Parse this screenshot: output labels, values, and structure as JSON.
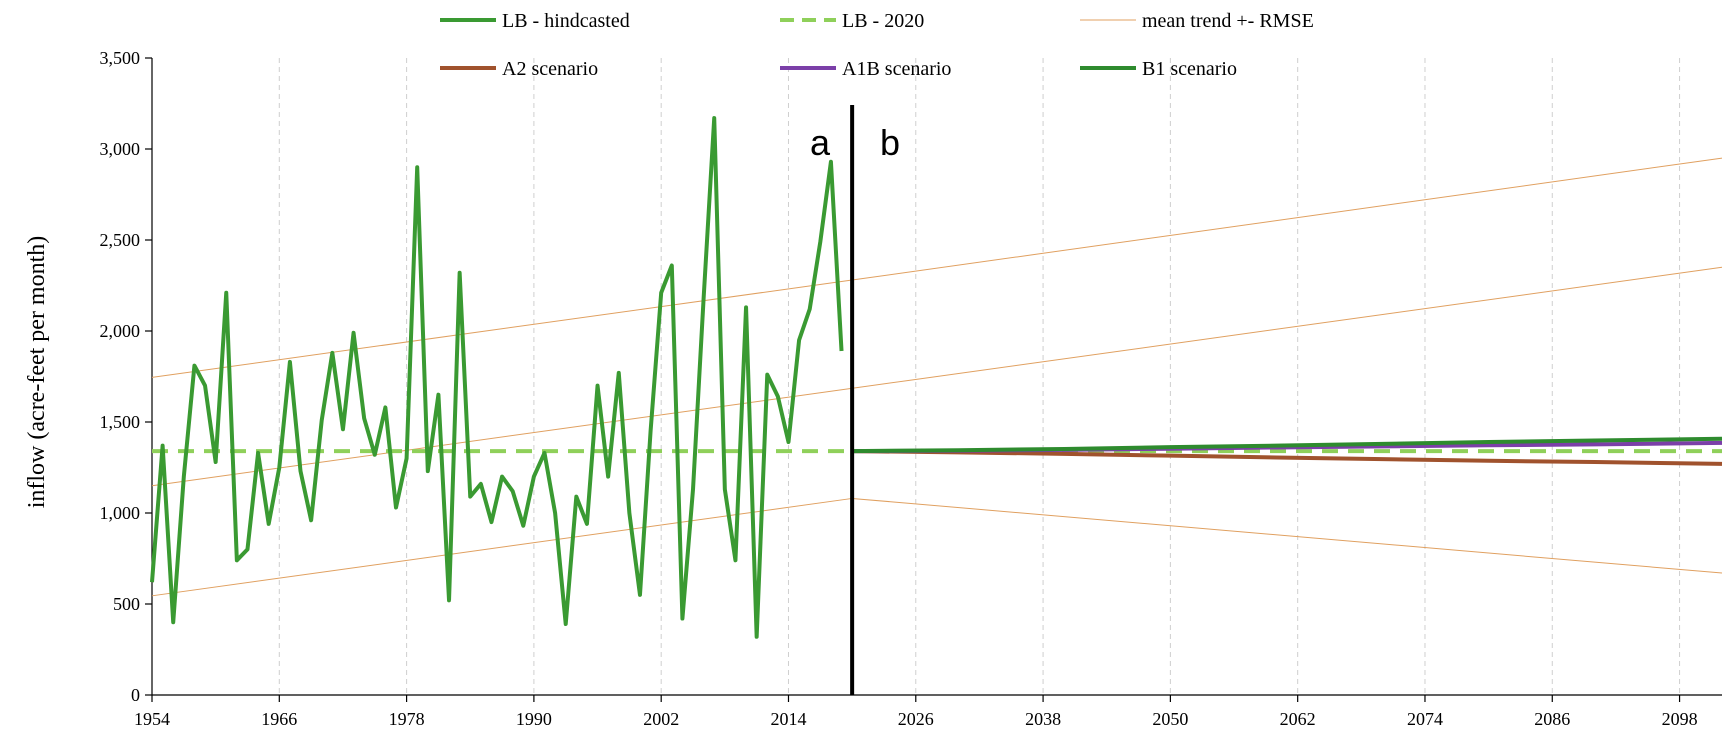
{
  "chart_data": {
    "type": "line",
    "title": "",
    "xlabel": "",
    "ylabel": "inflow (acre-feet per month)",
    "xlim": [
      1954,
      2102
    ],
    "ylim": [
      0,
      3500
    ],
    "x_ticks": [
      1954,
      1966,
      1978,
      1990,
      2002,
      2014,
      2026,
      2038,
      2050,
      2062,
      2074,
      2086,
      2098
    ],
    "y_ticks": [
      0,
      500,
      1000,
      1500,
      2000,
      2500,
      3000,
      3500
    ],
    "y_tick_labels": [
      "0",
      "500",
      "1,000",
      "1,500",
      "2,000",
      "2,500",
      "3,000",
      "3,500"
    ],
    "grid": "vertical dashed",
    "legend_position": "top",
    "divider_year": 2020,
    "panel_labels": [
      "a",
      "b"
    ],
    "series": [
      {
        "name": "LB - hindcasted",
        "color": "#3a9a32",
        "style": "solid",
        "x": [
          1954,
          1955,
          1956,
          1957,
          1958,
          1959,
          1960,
          1961,
          1962,
          1963,
          1964,
          1965,
          1966,
          1967,
          1968,
          1969,
          1970,
          1971,
          1972,
          1973,
          1974,
          1975,
          1976,
          1977,
          1978,
          1979,
          1980,
          1981,
          1982,
          1983,
          1984,
          1985,
          1986,
          1987,
          1988,
          1989,
          1990,
          1991,
          1992,
          1993,
          1994,
          1995,
          1996,
          1997,
          1998,
          1999,
          2000,
          2001,
          2002,
          2003,
          2004,
          2005,
          2006,
          2007,
          2008,
          2009,
          2010,
          2011,
          2012,
          2013,
          2014,
          2015,
          2016,
          2017,
          2018,
          2019
        ],
        "values": [
          620,
          1370,
          400,
          1200,
          1810,
          1700,
          1280,
          2210,
          740,
          800,
          1330,
          940,
          1250,
          1830,
          1230,
          960,
          1510,
          1880,
          1460,
          1990,
          1520,
          1320,
          1580,
          1030,
          1300,
          2900,
          1230,
          1650,
          520,
          2320,
          1090,
          1160,
          950,
          1200,
          1120,
          930,
          1200,
          1330,
          1000,
          390,
          1090,
          940,
          1700,
          1200,
          1770,
          1000,
          550,
          1450,
          2210,
          2360,
          420,
          1130,
          2180,
          3170,
          1130,
          740,
          2130,
          320,
          1760,
          1640,
          1390,
          1950,
          2120,
          2490,
          2930,
          1890
        ]
      },
      {
        "name": "LB - 2020",
        "color": "#8fd05a",
        "style": "dashed",
        "x": [
          1954,
          2102
        ],
        "values": [
          1340,
          1340
        ]
      },
      {
        "name": "mean trend +- RMSE",
        "color": "#e0a060",
        "style": "thin",
        "x": [
          1954,
          2020
        ],
        "values": [
          1745,
          2280
        ]
      },
      {
        "name": "",
        "color": "#e0a060",
        "style": "thin",
        "x": [
          1954,
          2102
        ],
        "values": [
          1150,
          2350
        ]
      },
      {
        "name": "",
        "color": "#e0a060",
        "style": "thin",
        "x": [
          1954,
          2020
        ],
        "values": [
          545,
          1080
        ]
      },
      {
        "name": "",
        "color": "#e0a060",
        "style": "thin",
        "x": [
          2020,
          2102
        ],
        "values": [
          2280,
          2950
        ]
      },
      {
        "name": "",
        "color": "#e0a060",
        "style": "thin",
        "x": [
          2020,
          2102
        ],
        "values": [
          1080,
          670
        ]
      },
      {
        "name": "A2 scenario",
        "color": "#a0522d",
        "style": "solid",
        "x": [
          2020,
          2030,
          2040,
          2050,
          2060,
          2070,
          2080,
          2090,
          2102
        ],
        "values": [
          1340,
          1333,
          1325,
          1315,
          1305,
          1296,
          1287,
          1280,
          1270
        ]
      },
      {
        "name": "A1B scenario",
        "color": "#7b3fa8",
        "style": "solid",
        "x": [
          2020,
          2030,
          2040,
          2050,
          2060,
          2070,
          2080,
          2090,
          2102
        ],
        "values": [
          1340,
          1342,
          1347,
          1353,
          1360,
          1366,
          1372,
          1377,
          1385
        ]
      },
      {
        "name": "B1 scenario",
        "color": "#2e8b2e",
        "style": "solid",
        "x": [
          2020,
          2030,
          2040,
          2050,
          2060,
          2070,
          2080,
          2090,
          2102
        ],
        "values": [
          1340,
          1345,
          1352,
          1362,
          1370,
          1380,
          1390,
          1398,
          1408
        ]
      }
    ]
  },
  "legend": [
    {
      "label": "LB - hindcasted",
      "color": "#3a9a32",
      "style": "solid"
    },
    {
      "label": "LB - 2020",
      "color": "#8fd05a",
      "style": "dashed"
    },
    {
      "label": "mean trend +- RMSE",
      "color": "#e0a060",
      "style": "thin"
    },
    {
      "label": "A2 scenario",
      "color": "#a0522d",
      "style": "solid"
    },
    {
      "label": "A1B scenario",
      "color": "#7b3fa8",
      "style": "solid"
    },
    {
      "label": "B1 scenario",
      "color": "#2e8b2e",
      "style": "solid"
    }
  ]
}
